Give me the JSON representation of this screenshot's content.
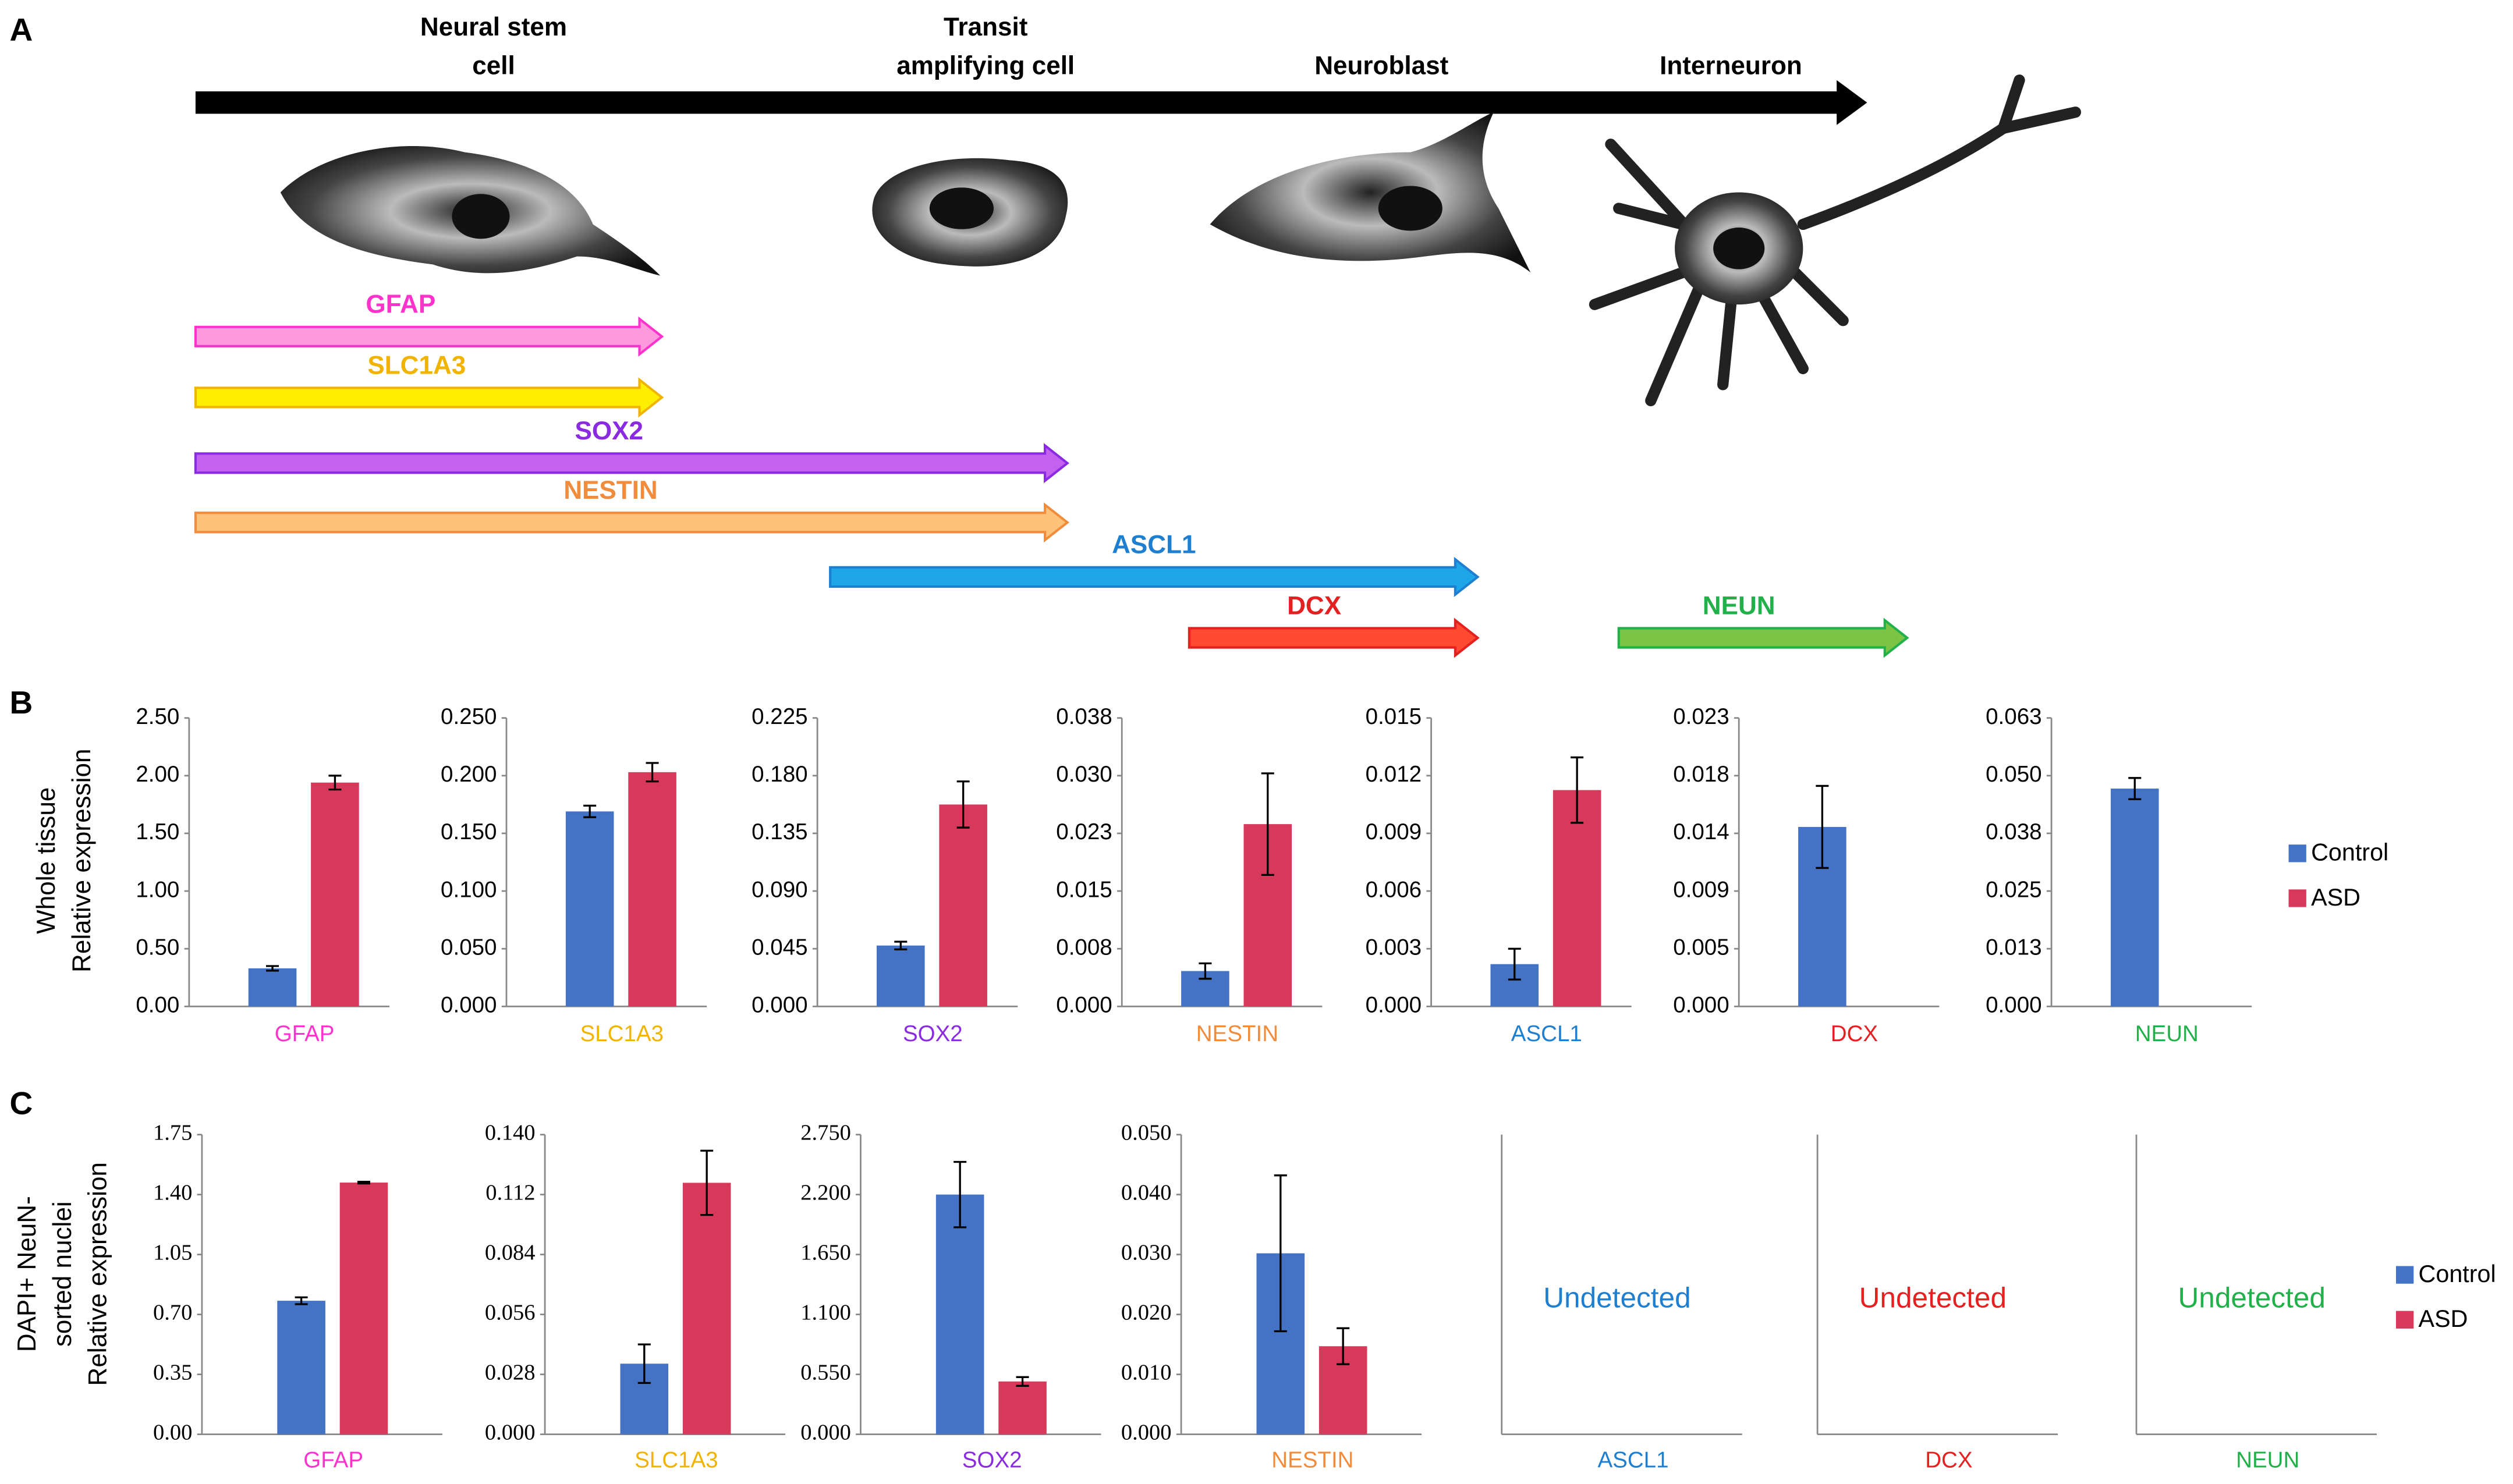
{
  "panel_labels": [
    "A",
    "B",
    "C"
  ],
  "diagram": {
    "stages": [
      {
        "lines": [
          "Neural stem",
          "cell"
        ]
      },
      {
        "lines": [
          "Transit",
          "amplifying cell"
        ]
      },
      {
        "lines": [
          "Neuroblast"
        ]
      },
      {
        "lines": [
          "Interneuron"
        ]
      }
    ],
    "markers": [
      {
        "name": "GFAP",
        "color": "#ff33cc",
        "fill": "#ff99dd"
      },
      {
        "name": "SLC1A3",
        "color": "#f0b400",
        "fill": "#ffee00"
      },
      {
        "name": "SOX2",
        "color": "#8a2be2",
        "fill": "#c462f0"
      },
      {
        "name": "NESTIN",
        "color": "#f08c3c",
        "fill": "#ffc27a"
      },
      {
        "name": "ASCL1",
        "color": "#1e7fd0",
        "fill": "#1ea6ea"
      },
      {
        "name": "DCX",
        "color": "#e52020",
        "fill": "#ff4a30"
      },
      {
        "name": "NEUN",
        "color": "#22b04a",
        "fill": "#7cc444"
      }
    ]
  },
  "chart_data": [
    {
      "type": "bar",
      "ylabel": [
        "Whole tissue",
        "Relative expression"
      ],
      "categories": [
        "GFAP"
      ],
      "label_color": "#ff33cc",
      "ylim": [
        0,
        2.5
      ],
      "yticks": [
        {
          "value": 0,
          "label": "0.00"
        },
        {
          "value": 0.5,
          "label": "0.50"
        },
        {
          "value": 1,
          "label": "1.00"
        },
        {
          "value": 1.5,
          "label": "1.50"
        },
        {
          "value": 2,
          "label": "2.00"
        },
        {
          "value": 2.5,
          "label": "2.50"
        }
      ],
      "series": [
        {
          "name": "Control",
          "color": "#4472c4",
          "values": [
            0.33
          ],
          "errors": [
            0.02
          ]
        },
        {
          "name": "ASD",
          "color": "#d6395a",
          "values": [
            1.94
          ],
          "errors": [
            0.06
          ]
        }
      ]
    },
    {
      "type": "bar",
      "categories": [
        "SLC1A3"
      ],
      "label_color": "#f0b400",
      "ylim": [
        0,
        0.25
      ],
      "yticks": [
        {
          "value": 0,
          "label": "0.000"
        },
        {
          "value": 0.05,
          "label": "0.050"
        },
        {
          "value": 0.1,
          "label": "0.100"
        },
        {
          "value": 0.15,
          "label": "0.150"
        },
        {
          "value": 0.2,
          "label": "0.200"
        },
        {
          "value": 0.25,
          "label": "0.250"
        }
      ],
      "series": [
        {
          "name": "Control",
          "color": "#4472c4",
          "values": [
            0.169
          ],
          "errors": [
            0.005
          ]
        },
        {
          "name": "ASD",
          "color": "#d6395a",
          "values": [
            0.203
          ],
          "errors": [
            0.008
          ]
        }
      ]
    },
    {
      "type": "bar",
      "categories": [
        "SOX2"
      ],
      "label_color": "#8a2be2",
      "ylim": [
        0,
        0.225
      ],
      "yticks": [
        {
          "value": 0,
          "label": "0.000"
        },
        {
          "value": 0.045,
          "label": "0.045"
        },
        {
          "value": 0.09,
          "label": "0.090"
        },
        {
          "value": 0.135,
          "label": "0.135"
        },
        {
          "value": 0.18,
          "label": "0.180"
        },
        {
          "value": 0.225,
          "label": "0.225"
        }
      ],
      "series": [
        {
          "name": "Control",
          "color": "#4472c4",
          "values": [
            0.0475
          ],
          "errors": [
            0.003
          ]
        },
        {
          "name": "ASD",
          "color": "#d6395a",
          "values": [
            0.1575
          ],
          "errors": [
            0.018
          ]
        }
      ]
    },
    {
      "type": "bar",
      "categories": [
        "NESTIN"
      ],
      "label_color": "#f08c3c",
      "ylim": [
        0,
        0.0375
      ],
      "yticks": [
        {
          "value": 0,
          "label": "0.000"
        },
        {
          "value": 0.0075,
          "label": "0.008"
        },
        {
          "value": 0.015,
          "label": "0.015"
        },
        {
          "value": 0.0225,
          "label": "0.023"
        },
        {
          "value": 0.03,
          "label": "0.030"
        },
        {
          "value": 0.0375,
          "label": "0.038"
        }
      ],
      "series": [
        {
          "name": "Control",
          "color": "#4472c4",
          "values": [
            0.0046
          ],
          "errors": [
            0.001
          ]
        },
        {
          "name": "ASD",
          "color": "#d6395a",
          "values": [
            0.0237
          ],
          "errors": [
            0.0066
          ]
        }
      ]
    },
    {
      "type": "bar",
      "categories": [
        "ASCL1"
      ],
      "label_color": "#1e7fd0",
      "ylim": [
        0,
        0.015
      ],
      "yticks": [
        {
          "value": 0,
          "label": "0.000"
        },
        {
          "value": 0.003,
          "label": "0.003"
        },
        {
          "value": 0.006,
          "label": "0.006"
        },
        {
          "value": 0.009,
          "label": "0.009"
        },
        {
          "value": 0.012,
          "label": "0.012"
        },
        {
          "value": 0.015,
          "label": "0.015"
        }
      ],
      "series": [
        {
          "name": "Control",
          "color": "#4472c4",
          "values": [
            0.0022
          ],
          "errors": [
            0.0008
          ]
        },
        {
          "name": "ASD",
          "color": "#d6395a",
          "values": [
            0.01125
          ],
          "errors": [
            0.0017
          ]
        }
      ]
    },
    {
      "type": "bar",
      "categories": [
        "DCX"
      ],
      "label_color": "#e52020",
      "ylim": [
        0,
        0.0225
      ],
      "yticks": [
        {
          "value": 0,
          "label": "0.000"
        },
        {
          "value": 0.0045,
          "label": "0.005"
        },
        {
          "value": 0.009,
          "label": "0.009"
        },
        {
          "value": 0.0135,
          "label": "0.014"
        },
        {
          "value": 0.018,
          "label": "0.018"
        },
        {
          "value": 0.0225,
          "label": "0.023"
        }
      ],
      "series": [
        {
          "name": "Control",
          "color": "#4472c4",
          "values": [
            0.014
          ],
          "errors": [
            0.0032
          ]
        },
        {
          "name": "ASD",
          "color": "#d6395a",
          "values": [
            null
          ],
          "errors": [
            null
          ]
        }
      ]
    },
    {
      "type": "bar",
      "categories": [
        "NEUN"
      ],
      "label_color": "#22b04a",
      "ylim": [
        0,
        0.0625
      ],
      "yticks": [
        {
          "value": 0,
          "label": "0.000"
        },
        {
          "value": 0.0125,
          "label": "0.013"
        },
        {
          "value": 0.025,
          "label": "0.025"
        },
        {
          "value": 0.0375,
          "label": "0.038"
        },
        {
          "value": 0.05,
          "label": "0.050"
        },
        {
          "value": 0.0625,
          "label": "0.063"
        }
      ],
      "series": [
        {
          "name": "Control",
          "color": "#4472c4",
          "values": [
            0.0472
          ],
          "errors": [
            0.0023
          ]
        },
        {
          "name": "ASD",
          "color": "#d6395a",
          "values": [
            null
          ],
          "errors": [
            null
          ]
        }
      ]
    },
    {
      "type": "bar",
      "ylabel": [
        "DAPI+ NeuN-",
        "sorted nuclei",
        "Relative expression"
      ],
      "categories": [
        "GFAP"
      ],
      "label_color": "#ff33cc",
      "ylim": [
        0,
        1.75
      ],
      "yticks": [
        {
          "value": 0,
          "label": "0.00"
        },
        {
          "value": 0.35,
          "label": "0.35"
        },
        {
          "value": 0.7,
          "label": "0.70"
        },
        {
          "value": 1.05,
          "label": "1.05"
        },
        {
          "value": 1.4,
          "label": "1.40"
        },
        {
          "value": 1.75,
          "label": "1.75"
        }
      ],
      "series": [
        {
          "name": "Control",
          "color": "#4472c4",
          "values": [
            0.78
          ],
          "errors": [
            0.02
          ]
        },
        {
          "name": "ASD",
          "color": "#d6395a",
          "values": [
            1.47
          ],
          "errors": [
            0.005
          ]
        }
      ]
    },
    {
      "type": "bar",
      "categories": [
        "SLC1A3"
      ],
      "label_color": "#f0b400",
      "ylim": [
        0,
        0.14
      ],
      "yticks": [
        {
          "value": 0,
          "label": "0.000"
        },
        {
          "value": 0.028,
          "label": "0.028"
        },
        {
          "value": 0.056,
          "label": "0.056"
        },
        {
          "value": 0.084,
          "label": "0.084"
        },
        {
          "value": 0.112,
          "label": "0.112"
        },
        {
          "value": 0.14,
          "label": "0.140"
        }
      ],
      "series": [
        {
          "name": "Control",
          "color": "#4472c4",
          "values": [
            0.033
          ],
          "errors": [
            0.009
          ]
        },
        {
          "name": "ASD",
          "color": "#d6395a",
          "values": [
            0.1175
          ],
          "errors": [
            0.015
          ]
        }
      ]
    },
    {
      "type": "bar",
      "categories": [
        "SOX2"
      ],
      "label_color": "#8a2be2",
      "ylim": [
        0,
        2.75
      ],
      "yticks": [
        {
          "value": 0,
          "label": "0.000"
        },
        {
          "value": 0.55,
          "label": "0.550"
        },
        {
          "value": 1.1,
          "label": "1.100"
        },
        {
          "value": 1.65,
          "label": "1.650"
        },
        {
          "value": 2.2,
          "label": "2.200"
        },
        {
          "value": 2.75,
          "label": "2.750"
        }
      ],
      "series": [
        {
          "name": "Control",
          "color": "#4472c4",
          "values": [
            2.2
          ],
          "errors": [
            0.3
          ]
        },
        {
          "name": "ASD",
          "color": "#d6395a",
          "values": [
            0.485
          ],
          "errors": [
            0.04
          ]
        }
      ]
    },
    {
      "type": "bar",
      "categories": [
        "NESTIN"
      ],
      "label_color": "#f08c3c",
      "ylim": [
        0,
        0.05
      ],
      "yticks": [
        {
          "value": 0,
          "label": "0.000"
        },
        {
          "value": 0.01,
          "label": "0.010"
        },
        {
          "value": 0.02,
          "label": "0.020"
        },
        {
          "value": 0.03,
          "label": "0.030"
        },
        {
          "value": 0.04,
          "label": "0.040"
        },
        {
          "value": 0.05,
          "label": "0.050"
        }
      ],
      "series": [
        {
          "name": "Control",
          "color": "#4472c4",
          "values": [
            0.0302
          ],
          "errors": [
            0.013
          ]
        },
        {
          "name": "ASD",
          "color": "#d6395a",
          "values": [
            0.0147
          ],
          "errors": [
            0.003
          ]
        }
      ]
    },
    {
      "type": "bar",
      "categories": [
        "ASCL1"
      ],
      "label_color": "#1e7fd0",
      "annotation": "Undetected"
    },
    {
      "type": "bar",
      "categories": [
        "DCX"
      ],
      "label_color": "#e52020",
      "annotation": "Undetected"
    },
    {
      "type": "bar",
      "categories": [
        "NEUN"
      ],
      "label_color": "#22b04a",
      "annotation": "Undetected"
    }
  ]
}
